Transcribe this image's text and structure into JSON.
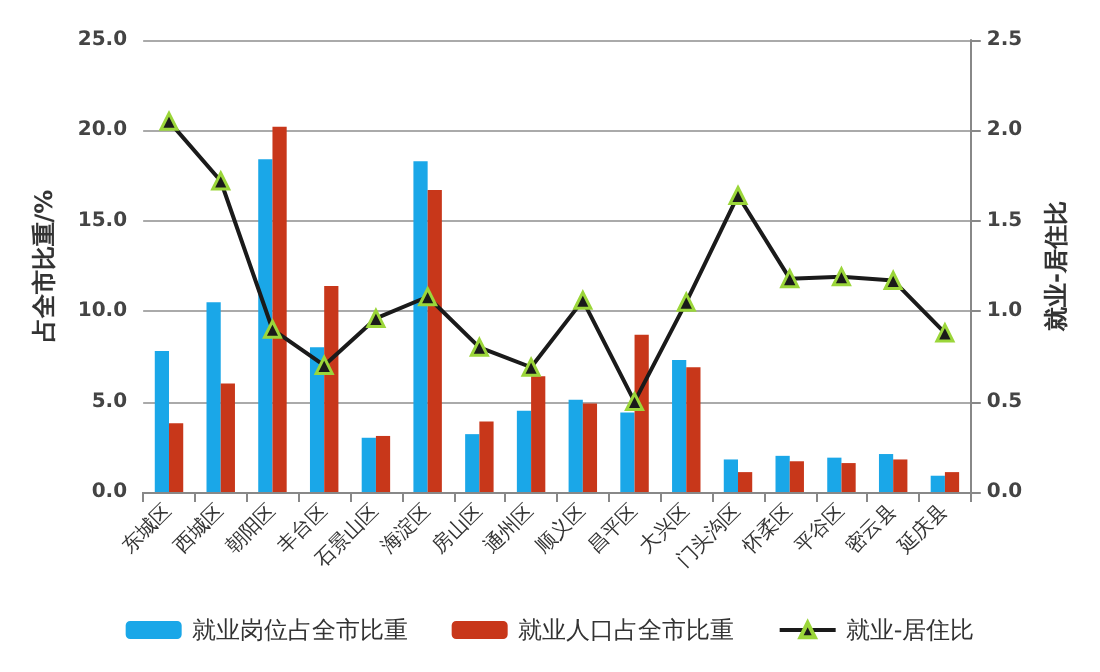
{
  "chart_data": {
    "type": "bar",
    "ylabel": "占全市比重/%",
    "y2label": "就业-居住比",
    "categories": [
      "东城区",
      "西城区",
      "朝阳区",
      "丰台区",
      "石景山区",
      "海淀区",
      "房山区",
      "通州区",
      "顺义区",
      "昌平区",
      "大兴区",
      "门头沟区",
      "怀柔区",
      "平谷区",
      "密云县",
      "延庆县"
    ],
    "series": [
      {
        "name": "就业岗位占全市比重",
        "color": "#1aa7e8",
        "values": [
          7.8,
          10.5,
          18.4,
          8.0,
          3.0,
          18.3,
          3.2,
          4.5,
          5.1,
          4.4,
          7.3,
          1.8,
          2.0,
          1.9,
          2.1,
          0.9
        ]
      },
      {
        "name": "就业人口占全市比重",
        "color": "#c8371a",
        "values": [
          3.8,
          6.0,
          20.2,
          11.4,
          3.1,
          16.7,
          3.9,
          6.4,
          4.9,
          8.7,
          6.9,
          1.1,
          1.7,
          1.6,
          1.8,
          1.1
        ]
      },
      {
        "name": "就业-居住比",
        "type": "line",
        "axis": "y2",
        "color": "#1a1a1a",
        "marker": "triangle",
        "values": [
          2.05,
          1.72,
          0.9,
          0.7,
          0.96,
          1.08,
          0.8,
          0.69,
          1.06,
          0.5,
          1.05,
          1.64,
          1.18,
          1.19,
          1.17,
          0.88
        ]
      }
    ],
    "ylim": [
      0,
      25
    ],
    "yticks": [
      {
        "value": 0,
        "label": "0.0"
      },
      {
        "value": 5,
        "label": "5.0"
      },
      {
        "value": 10,
        "label": "10.0"
      },
      {
        "value": 15,
        "label": "15.0"
      },
      {
        "value": 20,
        "label": "20.0"
      },
      {
        "value": 25,
        "label": "25.0"
      }
    ],
    "y2lim": [
      0,
      2.5
    ],
    "y2ticks": [
      {
        "value": 0,
        "label": "0.0"
      },
      {
        "value": 0.5,
        "label": "0.5"
      },
      {
        "value": 1,
        "label": "1.0"
      },
      {
        "value": 1.5,
        "label": "1.5"
      },
      {
        "value": 2,
        "label": "2.0"
      },
      {
        "value": 2.5,
        "label": "2.5"
      }
    ],
    "grid": "y",
    "legend": "bottom"
  }
}
